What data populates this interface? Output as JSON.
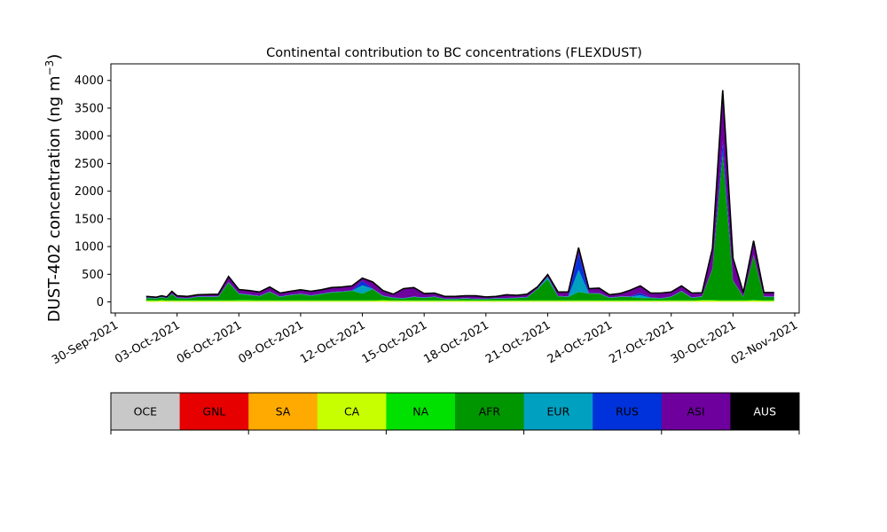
{
  "chart_data": {
    "type": "area",
    "title": "Continental contribution to BC concentrations (FLEXDUST)",
    "ylabel": "DUST-402 concentration (ng m",
    "ylabel_sup": "−3",
    "ylabel_close": ")",
    "xlabel": "",
    "ylim": [
      -200,
      4300
    ],
    "xlim": [
      "2021-09-30T00:00",
      "2021-11-02T00:00"
    ],
    "yticks": [
      0,
      500,
      1000,
      1500,
      2000,
      2500,
      3000,
      3500,
      4000
    ],
    "xticks": [
      {
        "date": "2021-09-30",
        "label": "30-Sep-2021"
      },
      {
        "date": "2021-10-03",
        "label": "03-Oct-2021"
      },
      {
        "date": "2021-10-06",
        "label": "06-Oct-2021"
      },
      {
        "date": "2021-10-09",
        "label": "09-Oct-2021"
      },
      {
        "date": "2021-10-12",
        "label": "12-Oct-2021"
      },
      {
        "date": "2021-10-15",
        "label": "15-Oct-2021"
      },
      {
        "date": "2021-10-18",
        "label": "18-Oct-2021"
      },
      {
        "date": "2021-10-21",
        "label": "21-Oct-2021"
      },
      {
        "date": "2021-10-24",
        "label": "24-Oct-2021"
      },
      {
        "date": "2021-10-27",
        "label": "27-Oct-2021"
      },
      {
        "date": "2021-10-30",
        "label": "30-Oct-2021"
      },
      {
        "date": "2021-11-02",
        "label": "02-Nov-2021"
      }
    ],
    "stack_order": [
      "OCE",
      "GNL",
      "SA",
      "CA",
      "NA",
      "AFR",
      "EUR",
      "RUS",
      "ASI",
      "AUS"
    ],
    "legend": [
      {
        "name": "OCE",
        "color": "#c8c8c8"
      },
      {
        "name": "GNL",
        "color": "#e60000"
      },
      {
        "name": "SA",
        "color": "#ffaa00"
      },
      {
        "name": "CA",
        "color": "#c8ff00"
      },
      {
        "name": "NA",
        "color": "#00e100"
      },
      {
        "name": "AFR",
        "color": "#009600"
      },
      {
        "name": "EUR",
        "color": "#00a0c0"
      },
      {
        "name": "RUS",
        "color": "#0032dc"
      },
      {
        "name": "ASI",
        "color": "#6e009e"
      },
      {
        "name": "AUS",
        "color": "#000000"
      }
    ],
    "x": [
      "2021-10-01T12:00",
      "2021-10-02T00:00",
      "2021-10-02T06:00",
      "2021-10-02T12:00",
      "2021-10-02T18:00",
      "2021-10-03T00:00",
      "2021-10-03T12:00",
      "2021-10-04T00:00",
      "2021-10-05T00:00",
      "2021-10-05T12:00",
      "2021-10-06T00:00",
      "2021-10-06T12:00",
      "2021-10-07T00:00",
      "2021-10-07T12:00",
      "2021-10-08T00:00",
      "2021-10-08T12:00",
      "2021-10-09T00:00",
      "2021-10-09T12:00",
      "2021-10-10T00:00",
      "2021-10-10T12:00",
      "2021-10-11T00:00",
      "2021-10-11T12:00",
      "2021-10-12T00:00",
      "2021-10-12T12:00",
      "2021-10-13T00:00",
      "2021-10-13T12:00",
      "2021-10-14T00:00",
      "2021-10-14T12:00",
      "2021-10-15T00:00",
      "2021-10-15T12:00",
      "2021-10-16T00:00",
      "2021-10-16T12:00",
      "2021-10-17T00:00",
      "2021-10-17T12:00",
      "2021-10-18T00:00",
      "2021-10-18T12:00",
      "2021-10-19T00:00",
      "2021-10-19T12:00",
      "2021-10-20T00:00",
      "2021-10-20T12:00",
      "2021-10-21T00:00",
      "2021-10-21T12:00",
      "2021-10-22T00:00",
      "2021-10-22T12:00",
      "2021-10-23T00:00",
      "2021-10-23T12:00",
      "2021-10-24T00:00",
      "2021-10-24T12:00",
      "2021-10-25T00:00",
      "2021-10-25T12:00",
      "2021-10-26T00:00",
      "2021-10-26T12:00",
      "2021-10-27T00:00",
      "2021-10-27T12:00",
      "2021-10-28T00:00",
      "2021-10-28T12:00",
      "2021-10-29T00:00",
      "2021-10-29T12:00",
      "2021-10-30T00:00",
      "2021-10-30T12:00",
      "2021-10-31T00:00",
      "2021-10-31T12:00",
      "2021-11-01T00:00"
    ],
    "series": [
      {
        "name": "OCE",
        "values": [
          0,
          0,
          0,
          0,
          0,
          0,
          0,
          0,
          0,
          0,
          0,
          0,
          0,
          0,
          0,
          0,
          0,
          0,
          0,
          0,
          0,
          0,
          0,
          0,
          0,
          0,
          0,
          0,
          0,
          0,
          0,
          0,
          0,
          0,
          0,
          0,
          0,
          0,
          0,
          0,
          0,
          0,
          0,
          0,
          0,
          0,
          0,
          0,
          0,
          0,
          0,
          0,
          0,
          0,
          0,
          0,
          0,
          0,
          0,
          0,
          0,
          0,
          0
        ]
      },
      {
        "name": "GNL",
        "values": [
          0,
          0,
          0,
          0,
          0,
          0,
          0,
          0,
          0,
          0,
          0,
          0,
          0,
          0,
          0,
          0,
          0,
          0,
          0,
          0,
          0,
          0,
          0,
          0,
          0,
          0,
          0,
          0,
          0,
          0,
          0,
          0,
          0,
          0,
          0,
          0,
          0,
          0,
          0,
          0,
          0,
          0,
          0,
          0,
          0,
          0,
          0,
          0,
          0,
          0,
          0,
          0,
          0,
          0,
          0,
          0,
          0,
          0,
          0,
          0,
          0,
          0,
          0
        ]
      },
      {
        "name": "SA",
        "values": [
          5,
          5,
          5,
          5,
          5,
          5,
          5,
          5,
          5,
          5,
          5,
          5,
          5,
          5,
          5,
          5,
          5,
          5,
          5,
          5,
          5,
          5,
          5,
          5,
          5,
          5,
          5,
          5,
          5,
          5,
          5,
          5,
          5,
          5,
          5,
          5,
          5,
          5,
          5,
          5,
          5,
          5,
          5,
          5,
          5,
          5,
          5,
          5,
          5,
          5,
          5,
          5,
          5,
          5,
          5,
          5,
          5,
          5,
          5,
          5,
          5,
          5,
          5
        ]
      },
      {
        "name": "CA",
        "values": [
          15,
          15,
          20,
          15,
          15,
          15,
          15,
          15,
          15,
          15,
          15,
          15,
          15,
          15,
          15,
          15,
          15,
          15,
          15,
          15,
          15,
          15,
          15,
          15,
          20,
          15,
          15,
          15,
          15,
          15,
          15,
          15,
          15,
          15,
          15,
          15,
          15,
          15,
          15,
          15,
          15,
          15,
          15,
          15,
          15,
          15,
          15,
          15,
          15,
          15,
          15,
          15,
          15,
          15,
          15,
          20,
          20,
          15,
          15,
          15,
          20,
          15,
          15
        ]
      },
      {
        "name": "NA",
        "values": [
          10,
          10,
          10,
          10,
          10,
          10,
          10,
          10,
          10,
          10,
          15,
          15,
          10,
          10,
          10,
          10,
          10,
          10,
          10,
          10,
          10,
          10,
          10,
          10,
          10,
          10,
          10,
          10,
          10,
          10,
          10,
          10,
          10,
          10,
          10,
          10,
          10,
          10,
          10,
          10,
          10,
          10,
          10,
          10,
          10,
          10,
          10,
          10,
          10,
          10,
          10,
          10,
          10,
          10,
          10,
          10,
          10,
          10,
          10,
          10,
          10,
          10,
          10
        ]
      },
      {
        "name": "AFR",
        "values": [
          40,
          30,
          50,
          30,
          110,
          40,
          30,
          60,
          60,
          320,
          110,
          90,
          70,
          150,
          60,
          90,
          110,
          80,
          110,
          140,
          150,
          170,
          120,
          200,
          70,
          40,
          30,
          60,
          40,
          60,
          20,
          20,
          30,
          20,
          20,
          30,
          30,
          40,
          50,
          200,
          380,
          70,
          60,
          150,
          120,
          120,
          40,
          60,
          60,
          40,
          40,
          30,
          60,
          160,
          40,
          60,
          560,
          2650,
          350,
          60,
          800,
          60,
          60
        ]
      },
      {
        "name": "EUR",
        "values": [
          5,
          5,
          5,
          5,
          5,
          5,
          5,
          5,
          5,
          5,
          5,
          5,
          5,
          5,
          5,
          5,
          5,
          5,
          5,
          5,
          5,
          5,
          150,
          5,
          5,
          5,
          5,
          5,
          5,
          5,
          5,
          5,
          5,
          5,
          5,
          5,
          5,
          5,
          5,
          5,
          40,
          5,
          5,
          400,
          5,
          5,
          5,
          5,
          5,
          50,
          5,
          5,
          5,
          5,
          5,
          5,
          5,
          5,
          5,
          5,
          5,
          5,
          5
        ]
      },
      {
        "name": "RUS",
        "values": [
          5,
          5,
          5,
          5,
          5,
          5,
          5,
          5,
          5,
          5,
          5,
          5,
          5,
          5,
          5,
          5,
          5,
          5,
          5,
          5,
          5,
          5,
          80,
          5,
          5,
          5,
          5,
          5,
          5,
          5,
          5,
          5,
          5,
          5,
          5,
          5,
          5,
          5,
          5,
          5,
          5,
          5,
          5,
          300,
          5,
          5,
          5,
          5,
          5,
          40,
          5,
          5,
          5,
          5,
          5,
          5,
          5,
          220,
          5,
          5,
          5,
          5,
          5
        ]
      },
      {
        "name": "ASI",
        "values": [
          20,
          15,
          15,
          20,
          40,
          30,
          30,
          30,
          40,
          100,
          70,
          70,
          70,
          80,
          60,
          60,
          70,
          70,
          70,
          80,
          80,
          80,
          50,
          120,
          90,
          60,
          170,
          160,
          70,
          60,
          40,
          40,
          40,
          50,
          30,
          30,
          60,
          40,
          50,
          30,
          40,
          70,
          80,
          100,
          80,
          90,
          50,
          50,
          110,
          130,
          80,
          90,
          80,
          90,
          80,
          60,
          360,
          920,
          400,
          70,
          260,
          70,
          70
        ]
      },
      {
        "name": "AUS",
        "values": [
          0,
          0,
          0,
          0,
          0,
          0,
          0,
          0,
          0,
          0,
          0,
          0,
          0,
          0,
          0,
          0,
          0,
          0,
          0,
          0,
          0,
          0,
          0,
          0,
          0,
          0,
          0,
          0,
          0,
          0,
          0,
          0,
          0,
          0,
          0,
          0,
          0,
          0,
          0,
          0,
          0,
          0,
          0,
          0,
          0,
          0,
          0,
          0,
          0,
          0,
          0,
          0,
          0,
          0,
          0,
          0,
          0,
          0,
          0,
          0,
          0,
          0,
          0
        ]
      }
    ]
  }
}
